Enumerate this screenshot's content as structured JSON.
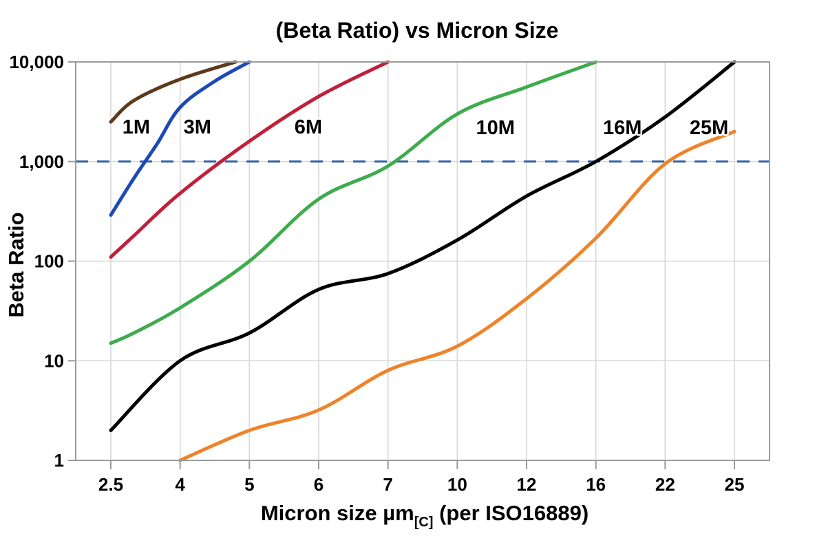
{
  "chart_data": {
    "type": "line",
    "title": "(Beta Ratio) vs Micron Size",
    "ylabel": "Beta Ratio",
    "xlabel_main": "Micron size µm",
    "xlabel_sub": "[C]",
    "xlabel_rest": " (per ISO16889)",
    "x_scale": "category",
    "y_scale": "log",
    "categories": [
      2.5,
      4,
      5,
      6,
      7,
      10,
      12,
      16,
      22,
      25
    ],
    "x_tick_labels": [
      "2.5",
      "4",
      "5",
      "6",
      "7",
      "10",
      "12",
      "16",
      "22",
      "25"
    ],
    "y_ticks": [
      1,
      10,
      100,
      1000,
      10000
    ],
    "y_tick_labels": [
      "1",
      "10",
      "100",
      "1,000",
      "10,000"
    ],
    "ylim": [
      1,
      10000
    ],
    "grid": true,
    "legend_position": "inline-labels",
    "reference_line": {
      "value": 1000,
      "style": "dashed",
      "color": "#2f62a8"
    },
    "series": [
      {
        "name": "1M",
        "color": "#5e3a1d",
        "label_at": [
          3.05,
          2250
        ],
        "points": [
          [
            2.5,
            2500
          ],
          [
            3,
            4100
          ],
          [
            4,
            6700
          ],
          [
            4.8,
            10000
          ]
        ]
      },
      {
        "name": "3M",
        "color": "#1b49b8",
        "label_at": [
          4.25,
          2250
        ],
        "points": [
          [
            2.5,
            290
          ],
          [
            3,
            680
          ],
          [
            3.5,
            1500
          ],
          [
            4,
            3500
          ],
          [
            4.5,
            6400
          ],
          [
            5,
            10000
          ]
        ]
      },
      {
        "name": "6M",
        "color": "#c21f3a",
        "label_at": [
          5.85,
          2250
        ],
        "points": [
          [
            2.5,
            110
          ],
          [
            3,
            180
          ],
          [
            4,
            480
          ],
          [
            5,
            1600
          ],
          [
            6,
            4500
          ],
          [
            7,
            10000
          ]
        ]
      },
      {
        "name": "10M",
        "color": "#3dac4c",
        "label_at": [
          11.1,
          2200
        ],
        "points": [
          [
            2.5,
            15
          ],
          [
            3,
            19
          ],
          [
            4,
            34
          ],
          [
            5,
            100
          ],
          [
            6,
            420
          ],
          [
            7,
            900
          ],
          [
            10,
            3000
          ],
          [
            12,
            5600
          ],
          [
            16,
            10000
          ]
        ]
      },
      {
        "name": "16M",
        "color": "#000000",
        "label_at": [
          18.3,
          2200
        ],
        "points": [
          [
            2.5,
            2
          ],
          [
            4,
            10
          ],
          [
            5,
            19
          ],
          [
            6,
            52
          ],
          [
            7,
            75
          ],
          [
            10,
            163
          ],
          [
            12,
            450
          ],
          [
            16,
            1000
          ],
          [
            22,
            2800
          ],
          [
            25,
            10000
          ]
        ]
      },
      {
        "name": "25M",
        "color": "#ef8329",
        "label_at": [
          23.9,
          2200
        ],
        "points": [
          [
            4,
            1
          ],
          [
            5,
            2
          ],
          [
            6,
            3.2
          ],
          [
            7,
            8
          ],
          [
            10,
            14
          ],
          [
            12,
            42
          ],
          [
            16,
            170
          ],
          [
            22,
            950
          ],
          [
            25,
            2000
          ]
        ]
      }
    ]
  },
  "palette": {
    "background": "#ffffff",
    "grid": "#d7d7d7",
    "axis": "#9b9b9b",
    "text": "#000000",
    "reference": "#2f62a8"
  }
}
